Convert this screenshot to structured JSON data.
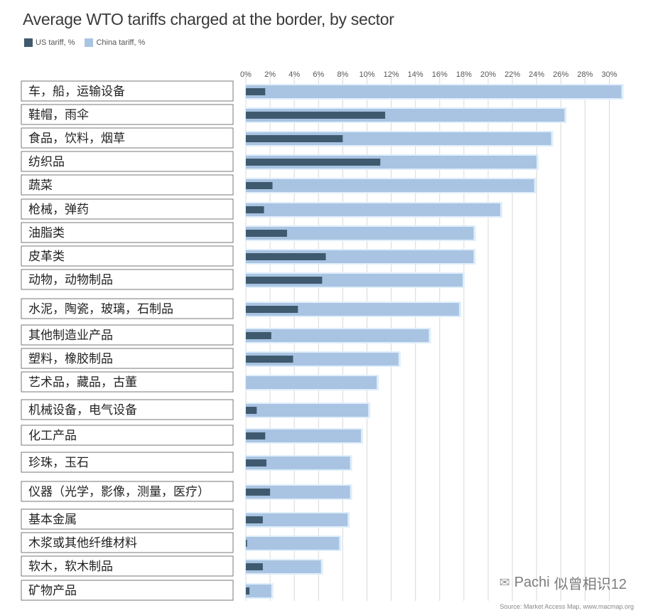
{
  "title": "Average WTO tariffs charged at the border, by sector",
  "legend": {
    "us_label": "US tariff, %",
    "china_label": "China tariff, %"
  },
  "colors": {
    "us": "#3f5a6e",
    "china": "#a9c4e2",
    "china_glow": "#dfeefb",
    "grid": "#d8d8d8",
    "label_border": "#777777"
  },
  "chart_data": {
    "type": "bar",
    "orientation": "horizontal",
    "title": "Average WTO tariffs charged at the border, by sector",
    "xlim": [
      0,
      31
    ],
    "xticks": [
      "0%",
      "2%",
      "4%",
      "6%",
      "8%",
      "10%",
      "12%",
      "14%",
      "16%",
      "18%",
      "20%",
      "22%",
      "24%",
      "26%",
      "28%",
      "30%"
    ],
    "legend_position": "top-left",
    "grid": true,
    "categories": [
      "车，船，运输设备",
      "鞋帽，雨伞",
      "食品，饮料，烟草",
      "纺织品",
      "蔬菜",
      "枪械，弹药",
      "油脂类",
      "皮革类",
      "动物，动物制品",
      "水泥，陶瓷，玻璃，石制品",
      "其他制造业产品",
      "塑料，橡胶制品",
      "艺术品，藏品，古董",
      "机械设备，电气设备",
      "化工产品",
      "珍珠，玉石",
      "仪器（光学，影像，测量，医疗）",
      "基本金属",
      "木浆或其他纤维材料",
      "软木，软木制品",
      "矿物产品"
    ],
    "series": [
      {
        "name": "US tariff, %",
        "values": [
          1.6,
          11.5,
          8.0,
          11.1,
          2.2,
          1.5,
          3.4,
          6.6,
          6.3,
          4.3,
          2.1,
          3.9,
          0,
          0.9,
          1.6,
          1.7,
          2.0,
          1.4,
          0.1,
          1.4,
          0.3
        ]
      },
      {
        "name": "China tariff, %",
        "values": [
          31.0,
          26.3,
          25.2,
          24.0,
          23.8,
          21.0,
          18.8,
          18.8,
          17.9,
          17.6,
          15.1,
          12.6,
          10.8,
          10.1,
          9.5,
          8.6,
          8.6,
          8.4,
          7.7,
          6.2,
          2.1
        ]
      }
    ]
  },
  "source": "Source: Market Access Map, www.macmap.org",
  "watermark": {
    "brand": "Pachi",
    "text": "似曾相识12"
  }
}
